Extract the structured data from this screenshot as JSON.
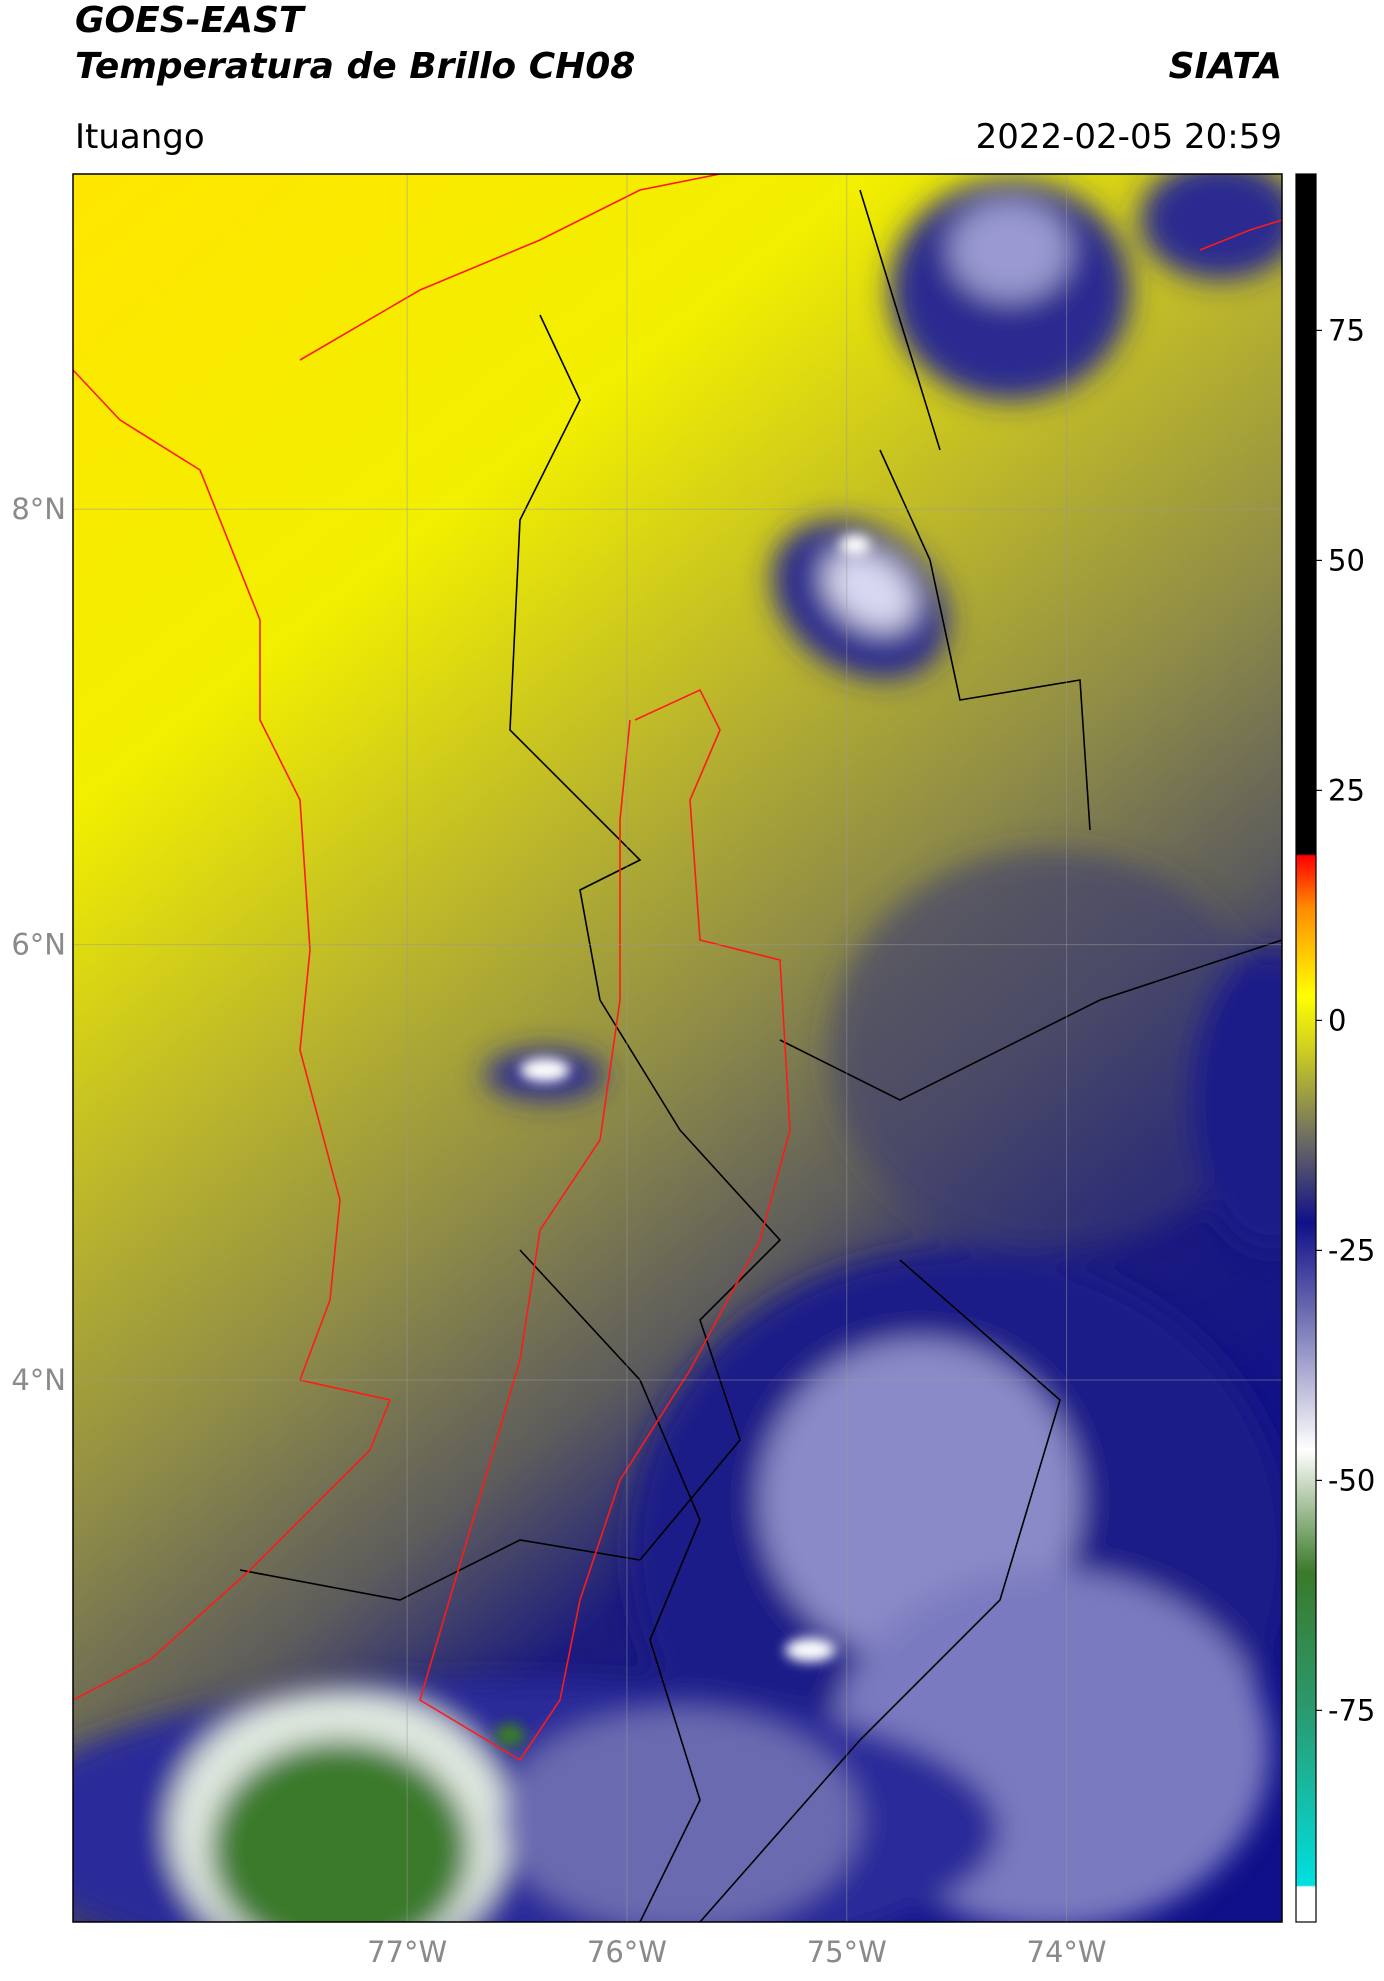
{
  "header": {
    "title": "GOES-EAST",
    "subtitle": "Temperatura de Brillo CH08",
    "source": "SIATA",
    "region": "Ituango",
    "datetime": "2022-02-05 20:59"
  },
  "map": {
    "type": "raster-map",
    "xlim": [
      -78.52,
      -73.02
    ],
    "xticks": [
      {
        "value": -77,
        "label": "77°W"
      },
      {
        "value": -76,
        "label": "76°W"
      },
      {
        "value": -75,
        "label": "75°W"
      },
      {
        "value": -74,
        "label": "74°W"
      }
    ],
    "ylim": [
      1.51,
      9.54
    ],
    "yticks": [
      {
        "value": 4,
        "label": "4°N"
      },
      {
        "value": 6,
        "label": "6°N"
      },
      {
        "value": 8,
        "label": "8°N"
      }
    ],
    "grid": true
  },
  "colorbar": {
    "lim": [
      -98,
      92
    ],
    "ticks": [
      75,
      50,
      25,
      0,
      -25,
      -50,
      -75
    ]
  }
}
